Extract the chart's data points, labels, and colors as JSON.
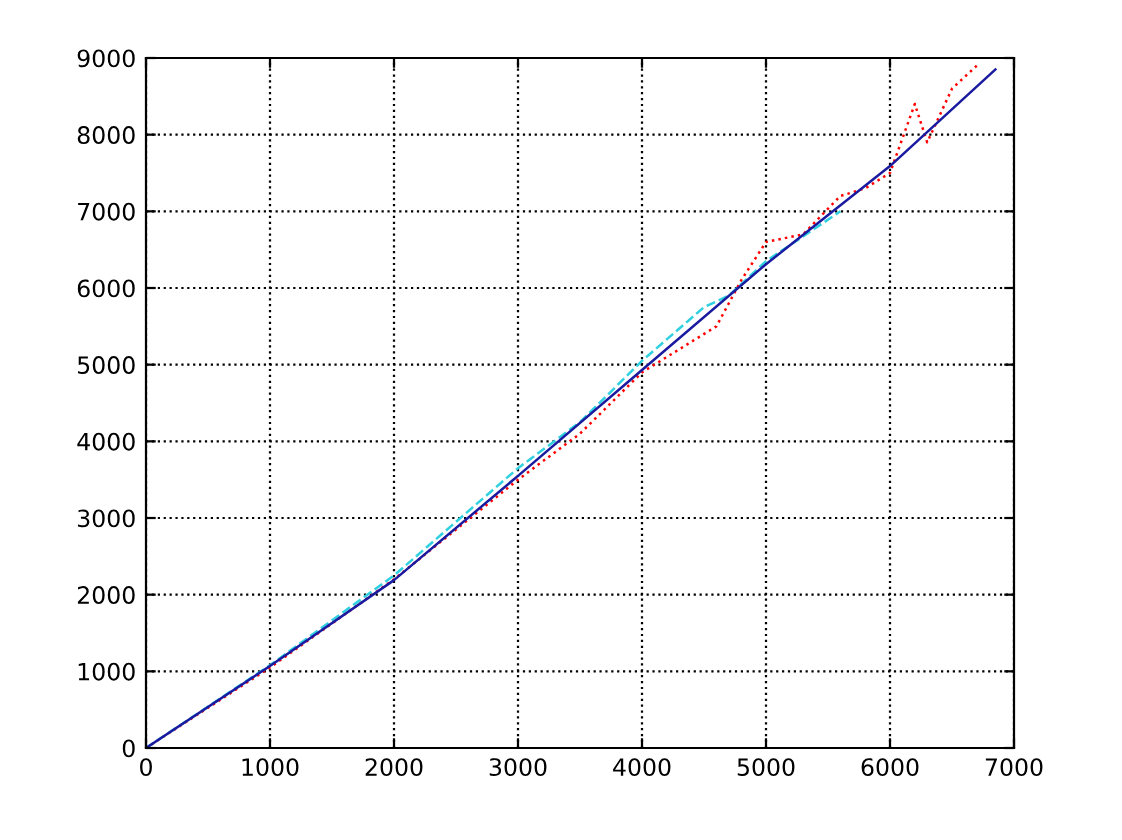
{
  "chart_data": {
    "type": "line",
    "xlim": [
      0,
      7000
    ],
    "ylim": [
      0,
      9000
    ],
    "xticks": [
      0,
      1000,
      2000,
      3000,
      4000,
      5000,
      6000,
      7000
    ],
    "yticks": [
      0,
      1000,
      2000,
      3000,
      4000,
      5000,
      6000,
      7000,
      8000,
      9000
    ],
    "grid": true,
    "legend": false,
    "series": [
      {
        "color": "#ff0000",
        "line_style": "dotted",
        "x": [
          0,
          1000,
          2000,
          3000,
          3500,
          4000,
          4300,
          4600,
          4800,
          5000,
          5300,
          5600,
          5800,
          6000,
          6200,
          6300,
          6500,
          6700
        ],
        "values": [
          0,
          1050,
          2200,
          3500,
          4100,
          4900,
          5200,
          5500,
          6100,
          6600,
          6700,
          7200,
          7300,
          7500,
          8400,
          7900,
          8600,
          8900
        ]
      },
      {
        "color": "#30d0e0",
        "line_style": "dashed",
        "x": [
          0,
          1000,
          2000,
          2500,
          3000,
          3500,
          4000,
          4500,
          4700,
          5000,
          5600
        ],
        "values": [
          0,
          1080,
          2250,
          2950,
          3650,
          4250,
          5050,
          5750,
          5900,
          6350,
          7000
        ]
      },
      {
        "color": "#1a1aa0",
        "line_style": "solid",
        "x": [
          0,
          1000,
          2000,
          3000,
          4000,
          5000,
          6000,
          6850
        ],
        "values": [
          0,
          1070,
          2190,
          3550,
          4930,
          6310,
          7590,
          8850
        ]
      }
    ]
  }
}
